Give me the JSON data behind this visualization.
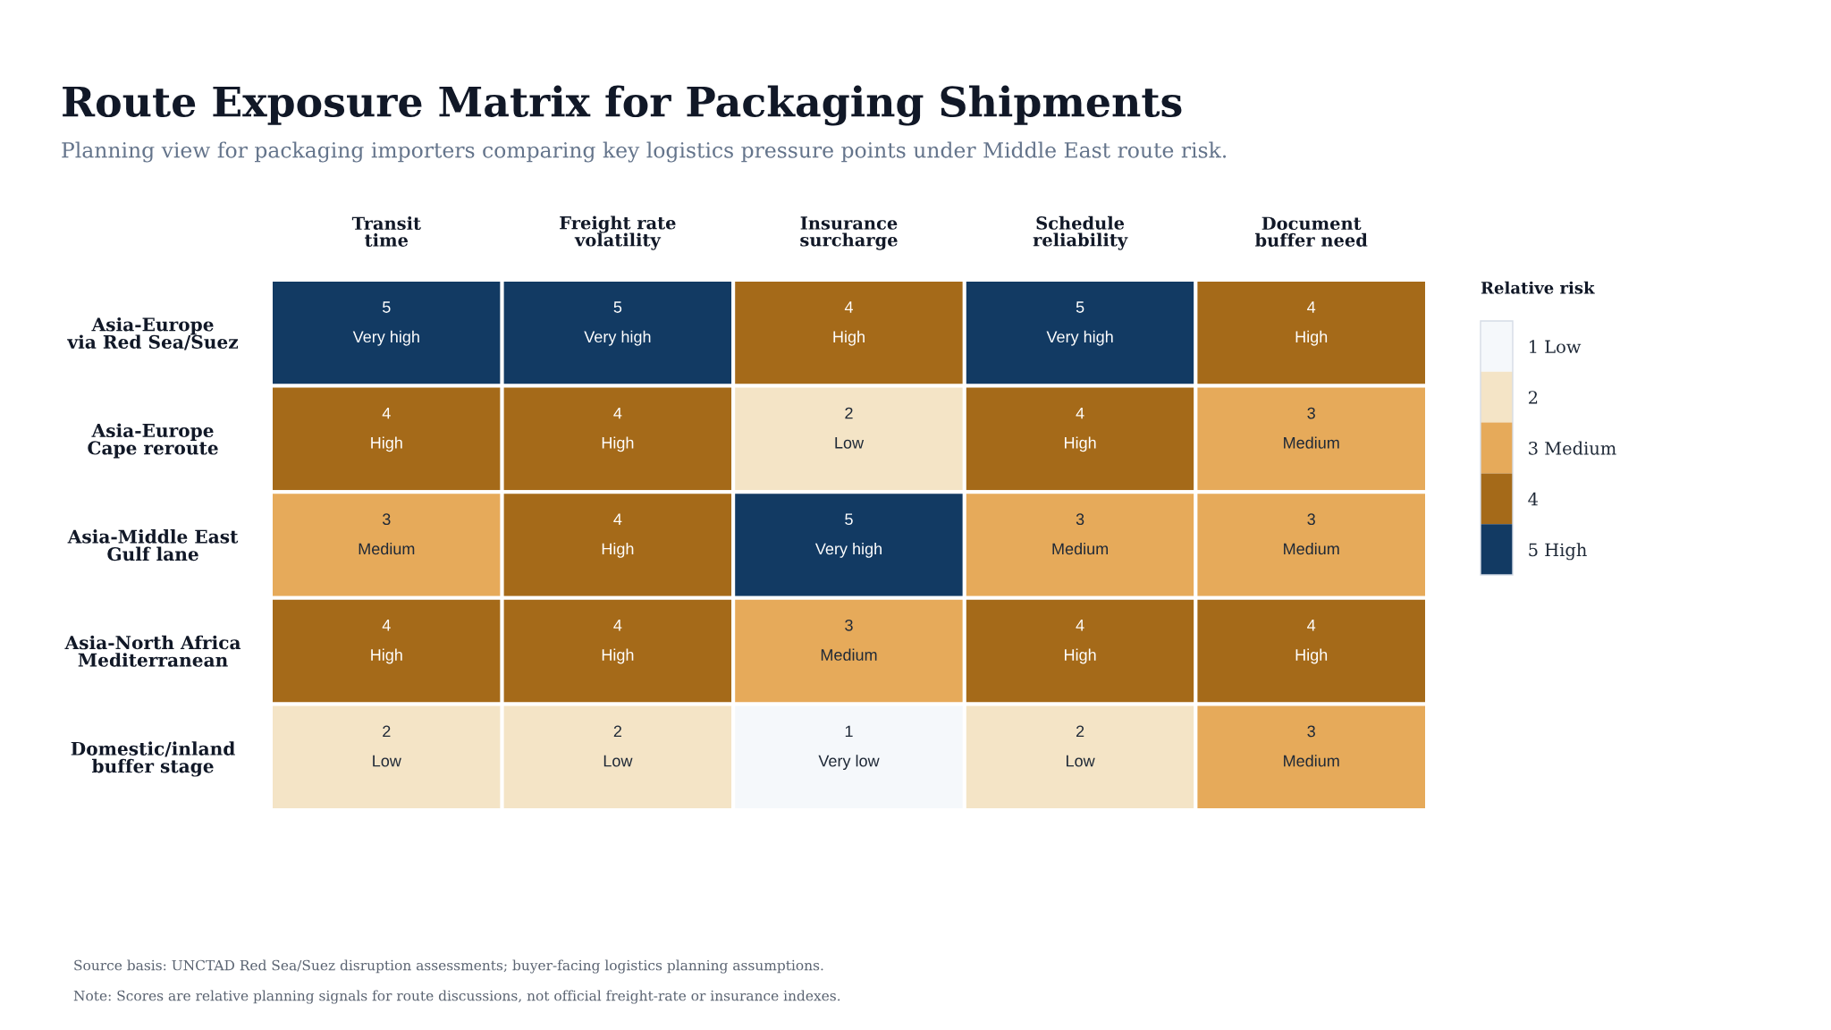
{
  "chart_data": {
    "type": "heatmap",
    "title": "Route Exposure Matrix for Packaging Shipments",
    "subtitle": "Planning view for packaging importers comparing key logistics pressure points under Middle East route risk.",
    "categories": [
      "Transit\ntime",
      "Freight rate\nvolatility",
      "Insurance\nsurcharge",
      "Schedule\nreliability",
      "Document\nbuffer need"
    ],
    "y_categories": [
      "Asia-Europe\nvia Red Sea/Suez",
      "Asia-Europe\nCape reroute",
      "Asia-Middle East\nGulf lane",
      "Asia-North Africa\nMediterranean",
      "Domestic/inland\nbuffer stage"
    ],
    "cells": [
      [
        5,
        5,
        4,
        5,
        4
      ],
      [
        4,
        4,
        2,
        4,
        3
      ],
      [
        3,
        4,
        5,
        3,
        3
      ],
      [
        4,
        4,
        3,
        4,
        4
      ],
      [
        2,
        2,
        1,
        2,
        3
      ]
    ],
    "cell_labels": [
      [
        "5\nVery high",
        "5\nVery high",
        "4\nHigh",
        "5\nVery high",
        "4\nHigh"
      ],
      [
        "4\nHigh",
        "4\nHigh",
        "2\nLow",
        "4\nHigh",
        "3\nMedium"
      ],
      [
        "3\nMedium",
        "4\nHigh",
        "5\nVery high",
        "3\nMedium",
        "3\nMedium"
      ],
      [
        "4\nHigh",
        "4\nHigh",
        "3\nMedium",
        "4\nHigh",
        "4\nHigh"
      ],
      [
        "2\nLow",
        "2\nLow",
        "1\nVery low",
        "2\nLow",
        "3\nMedium"
      ]
    ],
    "colors": [
      "#f5f8fb",
      "#f4e4c6",
      "#e6aa5a",
      "#a56a19",
      "#123a63"
    ],
    "clabel": "Relative risk",
    "clim": [
      0.5,
      5.5
    ],
    "cticks": [
      {
        "value": 1,
        "label": "1 Low"
      },
      2,
      {
        "value": 3,
        "label": "3 Medium"
      },
      4,
      {
        "value": 5,
        "label": "5 High"
      }
    ],
    "annotations": [
      "Source basis: UNCTAD Red Sea/Suez disruption assessments; buyer-facing logistics planning assumptions.",
      "Note: Scores are relative planning signals for route discussions, not official freight-rate or insurance indexes."
    ]
  }
}
